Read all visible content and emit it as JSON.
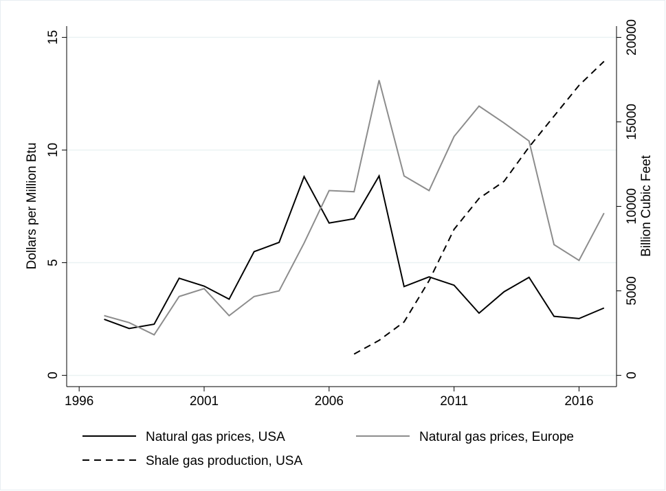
{
  "chart_data": {
    "type": "line",
    "x": [
      1997,
      1998,
      1999,
      2000,
      2001,
      2002,
      2003,
      2004,
      2005,
      2006,
      2007,
      2008,
      2009,
      2010,
      2011,
      2012,
      2013,
      2014,
      2015,
      2016,
      2017
    ],
    "xlim": [
      1995.5,
      2017.5
    ],
    "xticks": [
      1996,
      2001,
      2006,
      2011,
      2016
    ],
    "ylabel": "Dollars per Million Btu",
    "ylim": [
      -0.5,
      15.5
    ],
    "yticks": [
      0,
      5,
      10,
      15
    ],
    "y2label": "Billion Cubic Feet",
    "y2lim": [
      -667,
      20667
    ],
    "y2ticks": [
      0,
      5000,
      10000,
      15000,
      20000
    ],
    "grid": true,
    "series": [
      {
        "name": "Natural gas prices, USA",
        "color": "#000000",
        "style": "solid",
        "values": [
          2.49,
          2.08,
          2.27,
          4.31,
          3.96,
          3.38,
          5.49,
          5.9,
          8.82,
          6.76,
          6.95,
          8.85,
          3.94,
          4.37,
          4.0,
          2.76,
          3.71,
          4.35,
          2.62,
          2.52,
          2.99
        ]
      },
      {
        "name": "Natural gas prices, Europe",
        "color": "#8c8c8c",
        "style": "solid",
        "values": [
          2.65,
          2.34,
          1.8,
          3.5,
          3.85,
          2.65,
          3.5,
          3.75,
          5.87,
          8.2,
          8.15,
          13.1,
          8.85,
          8.2,
          10.6,
          11.95,
          11.2,
          10.4,
          5.8,
          5.1,
          7.2
        ]
      },
      {
        "name": "Shale gas production, USA",
        "color": "#000000",
        "style": "dashed",
        "axis": "y2",
        "values": [
          null,
          null,
          null,
          null,
          null,
          null,
          null,
          null,
          null,
          null,
          1260,
          2070,
          3160,
          5600,
          8640,
          10470,
          11480,
          13510,
          15340,
          17160,
          18580
        ]
      }
    ]
  }
}
